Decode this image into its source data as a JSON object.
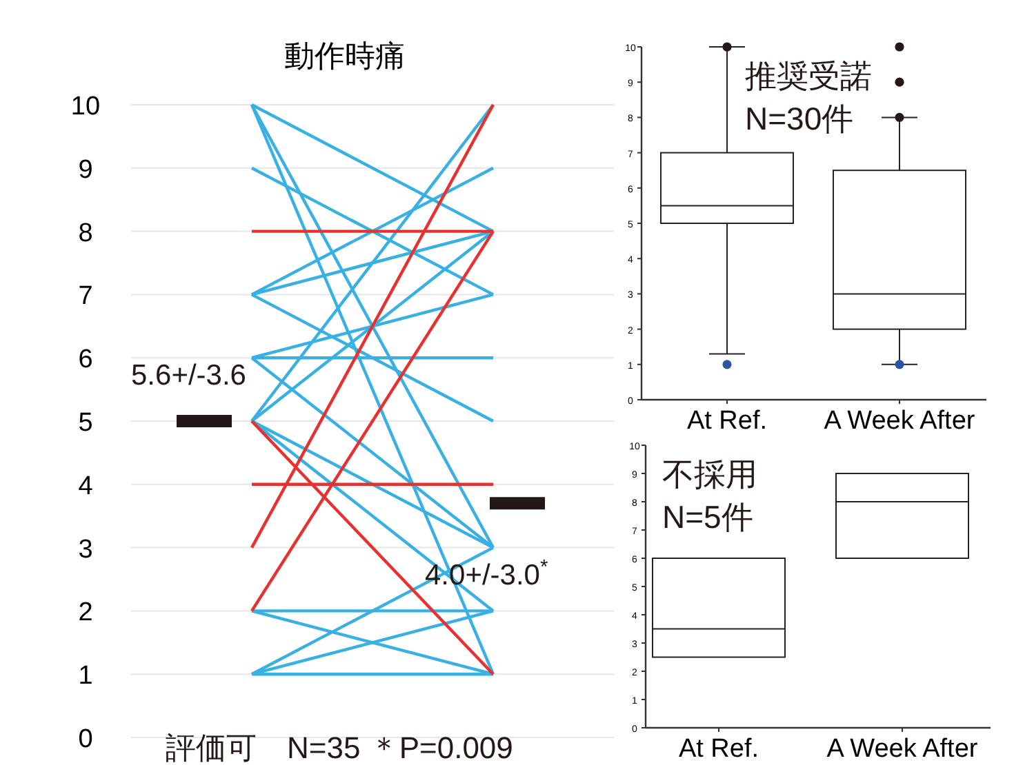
{
  "chart_data": [
    {
      "type": "line",
      "title": "動作時痛",
      "categories": [
        null,
        null
      ],
      "ylim": [
        0,
        10
      ],
      "yticks": [
        0,
        1,
        2,
        3,
        4,
        5,
        6,
        7,
        8,
        9,
        10
      ],
      "grid": "y",
      "legend": false,
      "marker": "none",
      "line_style": "solid",
      "series": [
        {
          "color": "#38b0e3",
          "values": [
            10,
            8
          ]
        },
        {
          "color": "#38b0e3",
          "values": [
            10,
            3
          ]
        },
        {
          "color": "#38b0e3",
          "values": [
            10,
            1
          ]
        },
        {
          "color": "#38b0e3",
          "values": [
            9,
            7
          ]
        },
        {
          "color": "#38b0e3",
          "values": [
            7,
            9
          ]
        },
        {
          "color": "#38b0e3",
          "values": [
            7,
            8
          ]
        },
        {
          "color": "#38b0e3",
          "values": [
            7,
            5
          ]
        },
        {
          "color": "#38b0e3",
          "values": [
            6,
            7
          ]
        },
        {
          "color": "#38b0e3",
          "values": [
            6,
            6
          ]
        },
        {
          "color": "#38b0e3",
          "values": [
            6,
            3
          ]
        },
        {
          "color": "#38b0e3",
          "values": [
            5,
            10
          ]
        },
        {
          "color": "#38b0e3",
          "values": [
            5,
            8
          ]
        },
        {
          "color": "#38b0e3",
          "values": [
            5,
            3
          ]
        },
        {
          "color": "#38b0e3",
          "values": [
            5,
            2
          ]
        },
        {
          "color": "#38b0e3",
          "values": [
            2,
            2
          ]
        },
        {
          "color": "#38b0e3",
          "values": [
            2,
            1
          ]
        },
        {
          "color": "#38b0e3",
          "values": [
            1,
            1
          ]
        },
        {
          "color": "#38b0e3",
          "values": [
            1,
            2
          ]
        },
        {
          "color": "#38b0e3",
          "values": [
            1,
            3
          ]
        },
        {
          "color": "#e8312f",
          "values": [
            8,
            8
          ]
        },
        {
          "color": "#e8312f",
          "values": [
            4,
            4
          ]
        },
        {
          "color": "#e8312f",
          "values": [
            3,
            10
          ]
        },
        {
          "color": "#e8312f",
          "values": [
            2,
            8
          ]
        },
        {
          "color": "#e8312f",
          "values": [
            5,
            1
          ]
        }
      ],
      "ref_lines": [
        {
          "axis": "y",
          "value": 5,
          "color": "#231815"
        },
        {
          "axis": "y",
          "value": 3.7,
          "color": "#231815"
        }
      ],
      "annotations": [
        "5.6+/-3.6",
        "4.0+/-3.0$^{*}$",
        "評価可　N=35 ＊P=0.009"
      ]
    },
    {
      "type": "box",
      "categories": [
        "At Ref.",
        "A Week After"
      ],
      "ylim": [
        0,
        10
      ],
      "yticks": [
        0,
        1,
        2,
        3,
        4,
        5,
        6,
        7,
        8,
        9,
        10
      ],
      "boxes": [
        {
          "low": 1.3,
          "q1": 5,
          "median": 5.5,
          "q3": 7,
          "high": 10,
          "outliers": [
            10
          ]
        },
        {
          "low": 1,
          "q1": 2,
          "median": 3,
          "q3": 6.5,
          "high": 8,
          "outliers": [
            10,
            9,
            8
          ]
        }
      ],
      "series": [
        {
          "type": "scatter",
          "color": "#2a54a6",
          "x": [
            "At Ref.",
            "A Week After"
          ],
          "values": [
            1,
            1
          ]
        }
      ],
      "annotations": [
        "推奨受諾",
        "N=30件"
      ]
    },
    {
      "type": "box",
      "categories": [
        "At Ref.",
        "A Week After"
      ],
      "ylim": [
        0,
        10
      ],
      "yticks": [
        0,
        1,
        2,
        3,
        4,
        5,
        6,
        7,
        8,
        9,
        10
      ],
      "boxes": [
        {
          "low": 2.5,
          "q1": 2.5,
          "median": 3.5,
          "q3": 6,
          "high": 6
        },
        {
          "low": 6,
          "q1": 6,
          "median": 8,
          "q3": 9,
          "high": 9
        }
      ],
      "annotations": [
        "不採用",
        "N=5件"
      ]
    }
  ]
}
